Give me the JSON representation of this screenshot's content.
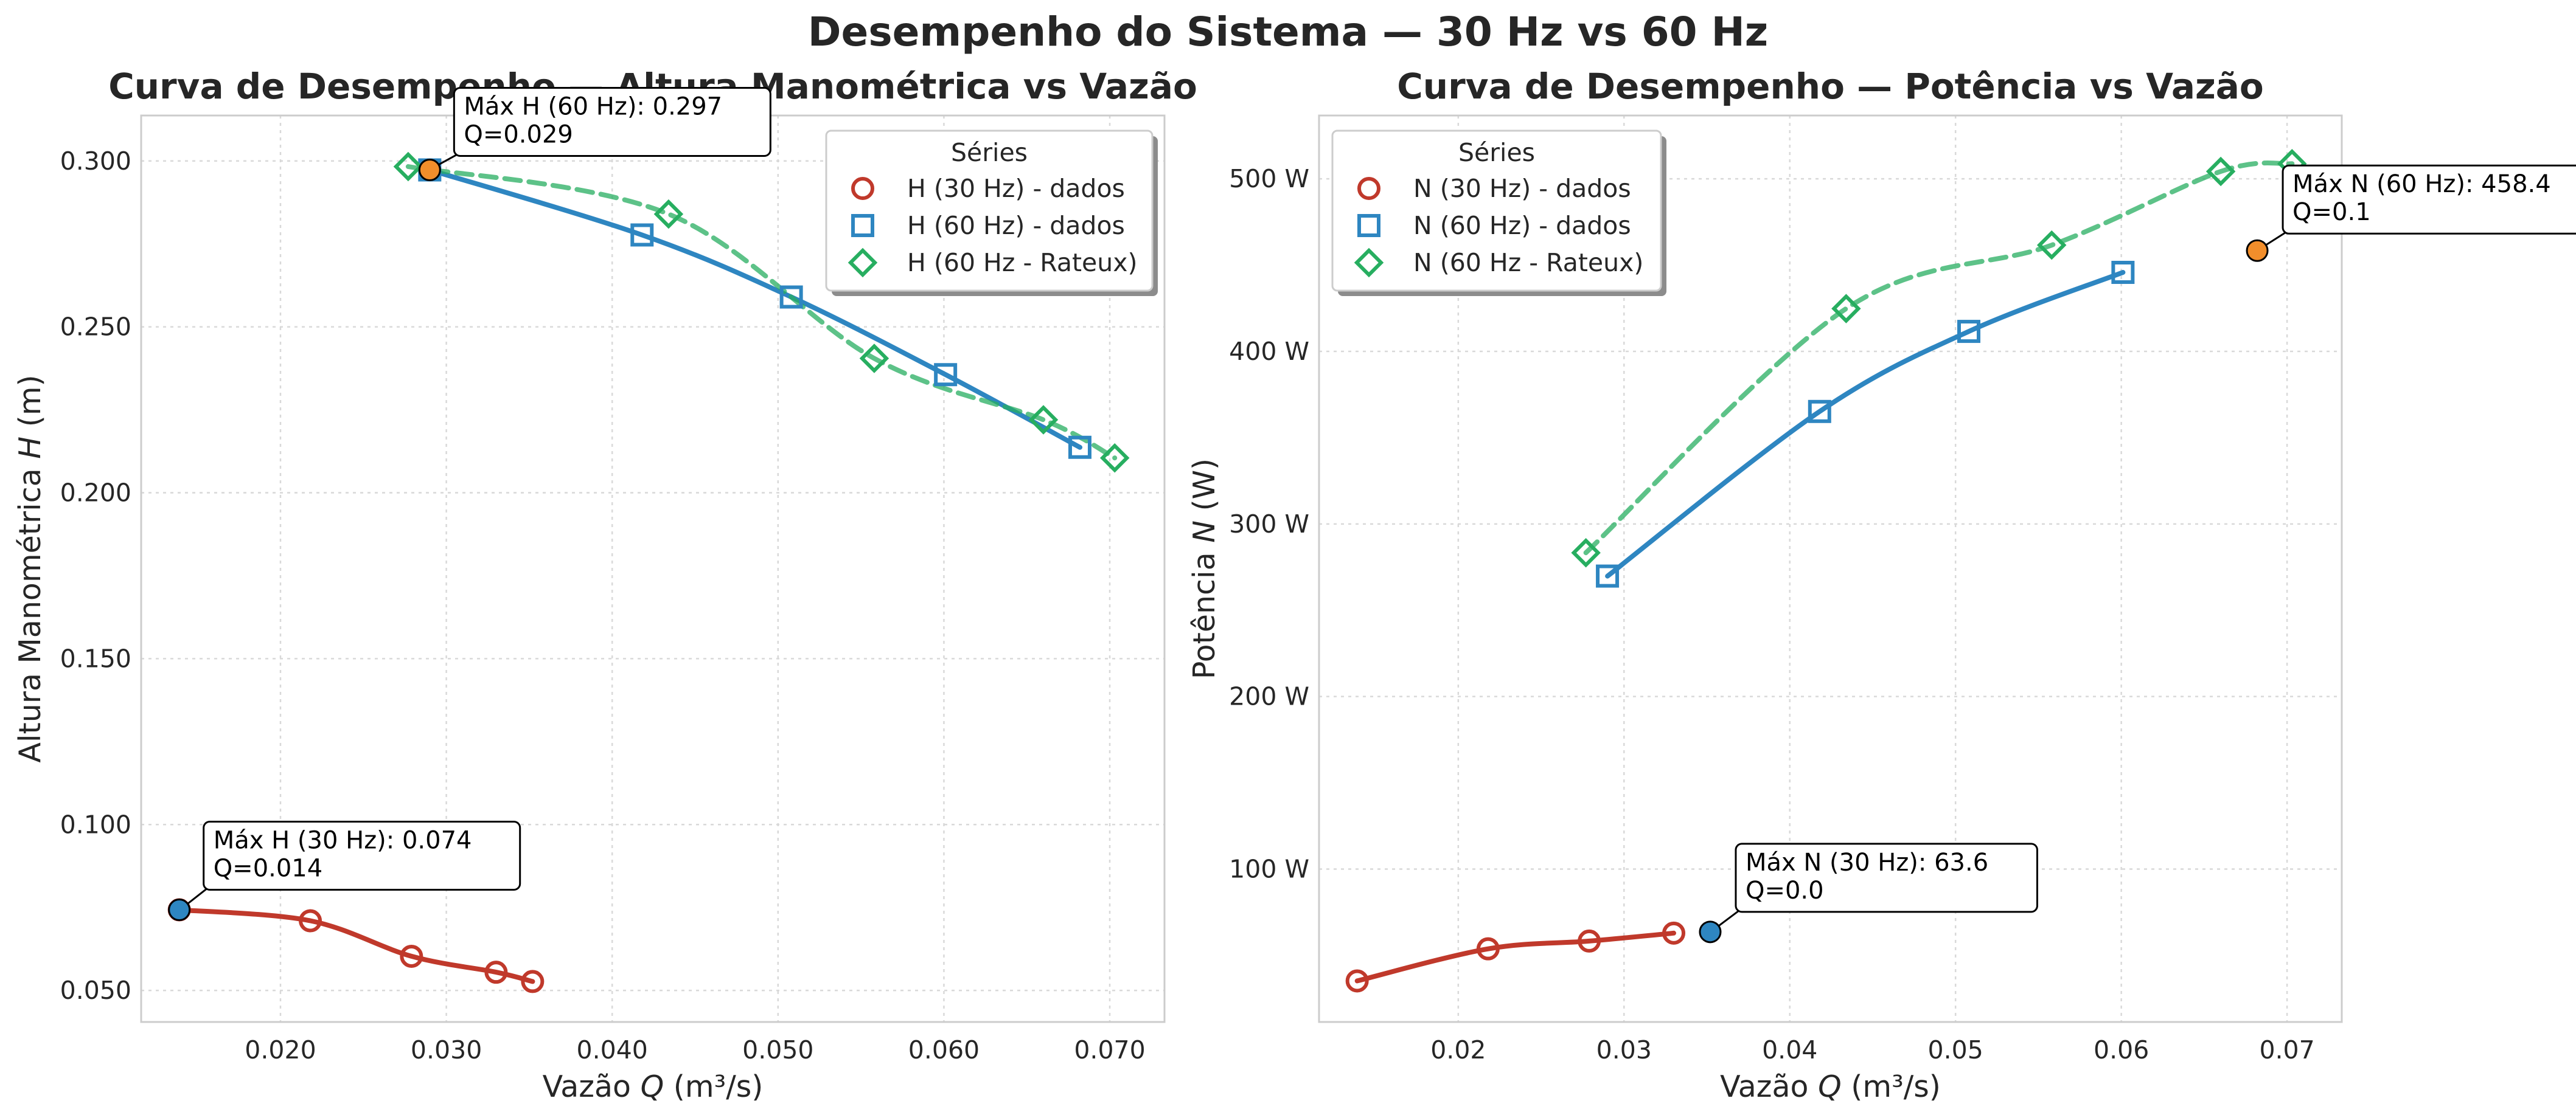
{
  "figure": {
    "title": "Desempenho do Sistema — 30 Hz vs 60 Hz"
  },
  "chart_data": [
    {
      "type": "line",
      "title": "Curva de Desempenho — Altura Manométrica vs Vazão",
      "xlabel": "Vazão Q (m³/s)",
      "ylabel": "Altura Manométrica H (m)",
      "xlim": [
        0.0116,
        0.0733
      ],
      "ylim": [
        0.0405,
        0.3137
      ],
      "xticks": [
        0.02,
        0.03,
        0.04,
        0.05,
        0.06,
        0.07
      ],
      "xtick_labels": [
        "0.020",
        "0.030",
        "0.040",
        "0.050",
        "0.060",
        "0.070"
      ],
      "yticks": [
        0.05,
        0.1,
        0.15,
        0.2,
        0.25,
        0.3
      ],
      "ytick_labels": [
        "0.050",
        "0.100",
        "0.150",
        "0.200",
        "0.250",
        "0.300"
      ],
      "grid": true,
      "legend": {
        "title": "Séries",
        "position": "top-right"
      },
      "series": [
        {
          "name": "H (30 Hz) - dados",
          "marker": "circle",
          "color": "#c0392b",
          "fit": "solid",
          "x": [
            0.0139,
            0.0218,
            0.0279,
            0.033,
            0.0352
          ],
          "y": [
            0.0743,
            0.071,
            0.0603,
            0.0555,
            0.0527
          ]
        },
        {
          "name": "H (60 Hz) - dados",
          "marker": "square",
          "color": "#2e86c1",
          "fit": "solid",
          "x": [
            0.029,
            0.0418,
            0.0508,
            0.0601,
            0.0682
          ],
          "y": [
            0.2973,
            0.2777,
            0.259,
            0.2356,
            0.2137
          ]
        },
        {
          "name": "H (60 Hz - Rateux)",
          "marker": "diamond",
          "color": "#27ae60",
          "fit": "dashed",
          "x": [
            0.0277,
            0.0434,
            0.0558,
            0.066,
            0.0703
          ],
          "y": [
            0.2983,
            0.284,
            0.2405,
            0.222,
            0.2105
          ]
        }
      ],
      "annotations": [
        {
          "text": "Máx H (60 Hz): 0.297\nQ=0.029",
          "x": 0.029,
          "y": 0.2973,
          "color": "#f28e2b"
        },
        {
          "text": "Máx H (30 Hz): 0.074\nQ=0.014",
          "x": 0.0139,
          "y": 0.0743,
          "color": "#2e86c1"
        }
      ]
    },
    {
      "type": "line",
      "title": "Curva de Desempenho — Potência vs Vazão",
      "xlabel": "Vazão Q (m³/s)",
      "ylabel": "Potência N (W)",
      "xlim": [
        0.0116,
        0.0733
      ],
      "ylim": [
        11.4,
        536.7
      ],
      "xticks": [
        0.02,
        0.03,
        0.04,
        0.05,
        0.06,
        0.07
      ],
      "xtick_labels": [
        "0.02",
        "0.03",
        "0.04",
        "0.05",
        "0.06",
        "0.07"
      ],
      "yticks": [
        100,
        200,
        300,
        400,
        500
      ],
      "ytick_labels": [
        "100 W",
        "200 W",
        "300 W",
        "400 W",
        "500 W"
      ],
      "grid": true,
      "legend": {
        "title": "Séries",
        "position": "top-left"
      },
      "series": [
        {
          "name": "N (30 Hz) - dados",
          "marker": "circle",
          "color": "#c0392b",
          "fit": "solid",
          "x": [
            0.0139,
            0.0218,
            0.0279,
            0.033
          ],
          "y": [
            35.2,
            53.8,
            58.3,
            62.9
          ]
        },
        {
          "name": "N (60 Hz) - dados",
          "marker": "square",
          "color": "#2e86c1",
          "fit": "solid",
          "x": [
            0.029,
            0.0418,
            0.0508,
            0.0601
          ],
          "y": [
            269.8,
            365.2,
            411.6,
            445.8
          ]
        },
        {
          "name": "N (60 Hz - Rateux)",
          "marker": "diamond",
          "color": "#27ae60",
          "fit": "dashed",
          "x": [
            0.0277,
            0.0434,
            0.0558,
            0.066,
            0.0703
          ],
          "y": [
            283.3,
            424.8,
            461.6,
            504.3,
            508.8
          ]
        }
      ],
      "annotations": [
        {
          "text": "Máx N (60 Hz): 458.4\nQ=0.1",
          "x": 0.0682,
          "y": 458.4,
          "color": "#f28e2b"
        },
        {
          "text": "Máx N (30 Hz): 63.6\nQ=0.0",
          "x": 0.0352,
          "y": 63.6,
          "color": "#2e86c1"
        }
      ]
    }
  ]
}
